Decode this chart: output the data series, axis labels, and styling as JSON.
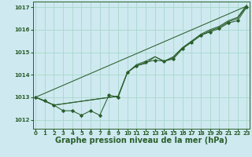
{
  "bg_color": "#cee9f0",
  "grid_color": "#a8d8cc",
  "line_color": "#2a5e2a",
  "marker_color": "#2a5e2a",
  "xlabel": "Graphe pression niveau de la mer (hPa)",
  "xlabel_fontsize": 7,
  "yticks": [
    1012,
    1013,
    1014,
    1015,
    1016,
    1017
  ],
  "xticks": [
    0,
    1,
    2,
    3,
    4,
    5,
    6,
    7,
    8,
    9,
    10,
    11,
    12,
    13,
    14,
    15,
    16,
    17,
    18,
    19,
    20,
    21,
    22,
    23
  ],
  "xlim": [
    -0.3,
    23.3
  ],
  "ylim": [
    1011.6,
    1017.25
  ],
  "line1_x": [
    0,
    1,
    2,
    3,
    4,
    5,
    6,
    7,
    8,
    9,
    10,
    11,
    12,
    13,
    14,
    15,
    16,
    17,
    18,
    19,
    20,
    21,
    22,
    23
  ],
  "line1_y": [
    1013.0,
    1012.85,
    1012.65,
    1012.4,
    1012.4,
    1012.2,
    1012.4,
    1012.2,
    1013.1,
    1013.0,
    1014.1,
    1014.4,
    1014.55,
    1014.65,
    1014.6,
    1014.7,
    1015.15,
    1015.45,
    1015.75,
    1015.9,
    1016.05,
    1016.3,
    1016.4,
    1017.0
  ],
  "line2_x": [
    0,
    2,
    9,
    10,
    11,
    12,
    13,
    14,
    15,
    16,
    17,
    18,
    19,
    20,
    21,
    22,
    23
  ],
  "line2_y": [
    1013.0,
    1012.65,
    1013.05,
    1014.1,
    1014.4,
    1014.5,
    1014.8,
    1014.6,
    1014.75,
    1015.2,
    1015.45,
    1015.75,
    1015.95,
    1016.1,
    1016.35,
    1016.5,
    1017.05
  ],
  "line3_x": [
    0,
    2,
    9,
    10,
    11,
    12,
    13,
    14,
    15,
    16,
    17,
    18,
    19,
    20,
    21,
    22,
    23
  ],
  "line3_y": [
    1013.0,
    1012.65,
    1013.05,
    1014.1,
    1014.45,
    1014.6,
    1014.8,
    1014.6,
    1014.8,
    1015.2,
    1015.5,
    1015.8,
    1016.0,
    1016.15,
    1016.4,
    1016.55,
    1017.1
  ],
  "line4_x": [
    0,
    23
  ],
  "line4_y": [
    1013.0,
    1017.05
  ]
}
